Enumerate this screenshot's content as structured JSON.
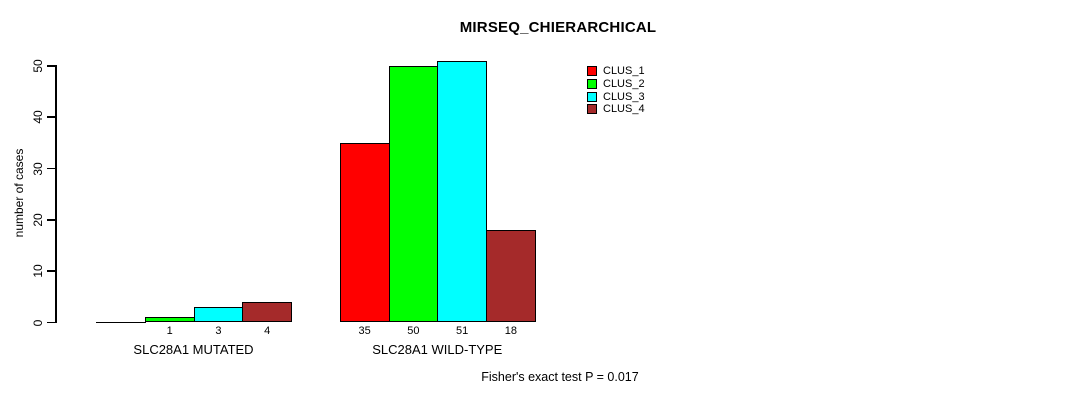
{
  "chart_data": {
    "type": "bar",
    "title": "MIRSEQ_CHIERARCHICAL",
    "ylabel": "number of cases",
    "footnote": "Fisher's exact test P = 0.017",
    "ylim": [
      0,
      51
    ],
    "yticks": [
      0,
      10,
      20,
      30,
      40,
      50
    ],
    "grid": false,
    "legend_position": "top-right",
    "bar_border_color": "#000000",
    "legend": [
      {
        "label": "CLUS_1",
        "color": "#FF0000"
      },
      {
        "label": "CLUS_2",
        "color": "#00FF00"
      },
      {
        "label": "CLUS_3",
        "color": "#00FFFF"
      },
      {
        "label": "CLUS_4",
        "color": "#A52A2A"
      }
    ],
    "groups": [
      {
        "label": "SLC28A1 MUTATED",
        "values": [
          0,
          1,
          3,
          4
        ],
        "value_labels": [
          "",
          "1",
          "3",
          "4"
        ]
      },
      {
        "label": "SLC28A1 WILD-TYPE",
        "values": [
          35,
          50,
          51,
          18
        ],
        "value_labels": [
          "35",
          "50",
          "51",
          "18"
        ]
      }
    ]
  }
}
